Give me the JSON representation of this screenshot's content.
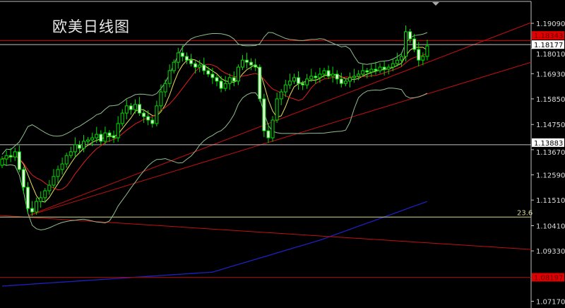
{
  "title": "欧美日线图",
  "chart_data": {
    "type": "candlestick",
    "title": "欧美日线图",
    "ylim": [
      1.0688,
      1.2009
    ],
    "y_ticks": [
      "1.19090",
      "1.18010",
      "1.16930",
      "1.15850",
      "1.14750",
      "1.13670",
      "1.12590",
      "1.11510",
      "1.10410",
      "1.09330",
      "1.07170"
    ],
    "closes": [
      1.1327,
      1.1342,
      1.1336,
      1.1358,
      1.1282,
      1.1206,
      1.1115,
      1.11,
      1.1145,
      1.1161,
      1.1191,
      1.1215,
      1.1252,
      1.1282,
      1.1306,
      1.1342,
      1.1358,
      1.1388,
      1.1373,
      1.1403,
      1.1409,
      1.1418,
      1.1433,
      1.1403,
      1.1439,
      1.1427,
      1.1418,
      1.1479,
      1.1524,
      1.1555,
      1.1539,
      1.1561,
      1.1524,
      1.1509,
      1.1494,
      1.1479,
      1.1555,
      1.1615,
      1.1651,
      1.1706,
      1.1742,
      1.1782,
      1.1767,
      1.1751,
      1.1736,
      1.1721,
      1.173,
      1.1706,
      1.1691,
      1.1676,
      1.1661,
      1.163,
      1.1651,
      1.1676,
      1.1661,
      1.1721,
      1.1751,
      1.1742,
      1.173,
      1.1721,
      1.1585,
      1.1448,
      1.1418,
      1.1494,
      1.1585,
      1.1615,
      1.1645,
      1.1661,
      1.1676,
      1.1651,
      1.1645,
      1.167,
      1.1682,
      1.1676,
      1.1691,
      1.1706,
      1.1682,
      1.1691,
      1.167,
      1.1651,
      1.1661,
      1.1676,
      1.1682,
      1.1691,
      1.1706,
      1.17,
      1.1712,
      1.1706,
      1.1721,
      1.1712,
      1.1721,
      1.1736,
      1.1751,
      1.1767,
      1.1873,
      1.1842,
      1.1797,
      1.1751,
      1.1767,
      1.1812
    ],
    "long_ma": [
      [
        0,
        1.0782
      ],
      [
        49,
        1.0842
      ],
      [
        74,
        1.0979
      ],
      [
        99,
        1.1145
      ]
    ],
    "horizontal_lines": [
      {
        "price": 1.18343,
        "label": "1.18343",
        "color": "#e00000",
        "label_bg": "#e00000"
      },
      {
        "price": 1.18177,
        "label": "1.18177",
        "color": "#c0c0c0",
        "label_bg": "#ffffff"
      },
      {
        "price": 1.13883,
        "label": "1.13883",
        "color": "#c0c0c0",
        "label_bg": "#ffffff"
      },
      {
        "price": 1.08197,
        "label": "1.08197",
        "color": "#b00000",
        "label_bg": "#e00000"
      },
      {
        "price": 1.1078,
        "label": "23.6",
        "color": "#d8d8a0",
        "label_bg": ""
      }
    ],
    "trend_lines": [
      {
        "from": [
          6.1,
          1.1084
        ],
        "to": [
          123.2,
          1.1912
        ],
        "color": "#c01010"
      },
      {
        "from": [
          6.1,
          1.1084
        ],
        "to": [
          123.2,
          1.1742
        ],
        "color": "#c01010"
      },
      {
        "from": [
          -0.5,
          1.1085
        ],
        "to": [
          123.2,
          1.0939
        ],
        "color": "#c01010"
      }
    ],
    "colors": {
      "candle": "#00e000",
      "bands": "#8fbf8f",
      "ma_fast": "#e8e060",
      "ma_slow": "#e02020",
      "long_ma": "#2020c0",
      "axis": "#c0c0c0"
    }
  }
}
